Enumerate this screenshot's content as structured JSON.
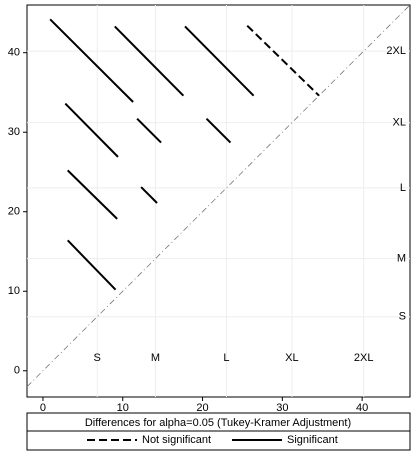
{
  "chart_data": {
    "type": "diffogram",
    "legend_title": "Differences for alpha=0.05 (Tukey-Kramer Adjustment)",
    "levels": [
      {
        "label": "S",
        "mean": 6.8
      },
      {
        "label": "M",
        "mean": 14.1
      },
      {
        "label": "L",
        "mean": 23
      },
      {
        "label": "XL",
        "mean": 31.2
      },
      {
        "label": "2XL",
        "mean": 40.2
      }
    ],
    "series": [
      {
        "name": "Not significant",
        "color": "#000000",
        "dashed": true,
        "segments": [
          {
            "x": [
              25.6,
              34.6
            ],
            "y": [
              43.4,
              34.6
            ]
          }
        ]
      },
      {
        "name": "Significant",
        "color": "#000000",
        "dashed": false,
        "segments": [
          {
            "x": [
              0.9,
              11.3
            ],
            "y": [
              44.2,
              33.8
            ]
          },
          {
            "x": [
              9,
              17.6
            ],
            "y": [
              43.3,
              34.6
            ]
          },
          {
            "x": [
              17.8,
              26.4
            ],
            "y": [
              43.3,
              34.6
            ]
          },
          {
            "x": [
              2.8,
              9.4
            ],
            "y": [
              33.6,
              26.9
            ]
          },
          {
            "x": [
              11.8,
              14.8
            ],
            "y": [
              31.7,
              28.7
            ]
          },
          {
            "x": [
              20.5,
              23.5
            ],
            "y": [
              31.7,
              28.7
            ]
          },
          {
            "x": [
              3.1,
              9.3
            ],
            "y": [
              25.2,
              19.1
            ]
          },
          {
            "x": [
              12.3,
              14.3
            ],
            "y": [
              23.1,
              21.1
            ]
          },
          {
            "x": [
              3.1,
              9.1
            ],
            "y": [
              16.4,
              10.2
            ]
          }
        ]
      }
    ],
    "xlim": [
      -2,
      46
    ],
    "ylim": [
      -3.3,
      46
    ],
    "xticks": [
      0,
      10,
      20,
      30,
      40
    ],
    "yticks": [
      0,
      10,
      20,
      30,
      40
    ]
  }
}
